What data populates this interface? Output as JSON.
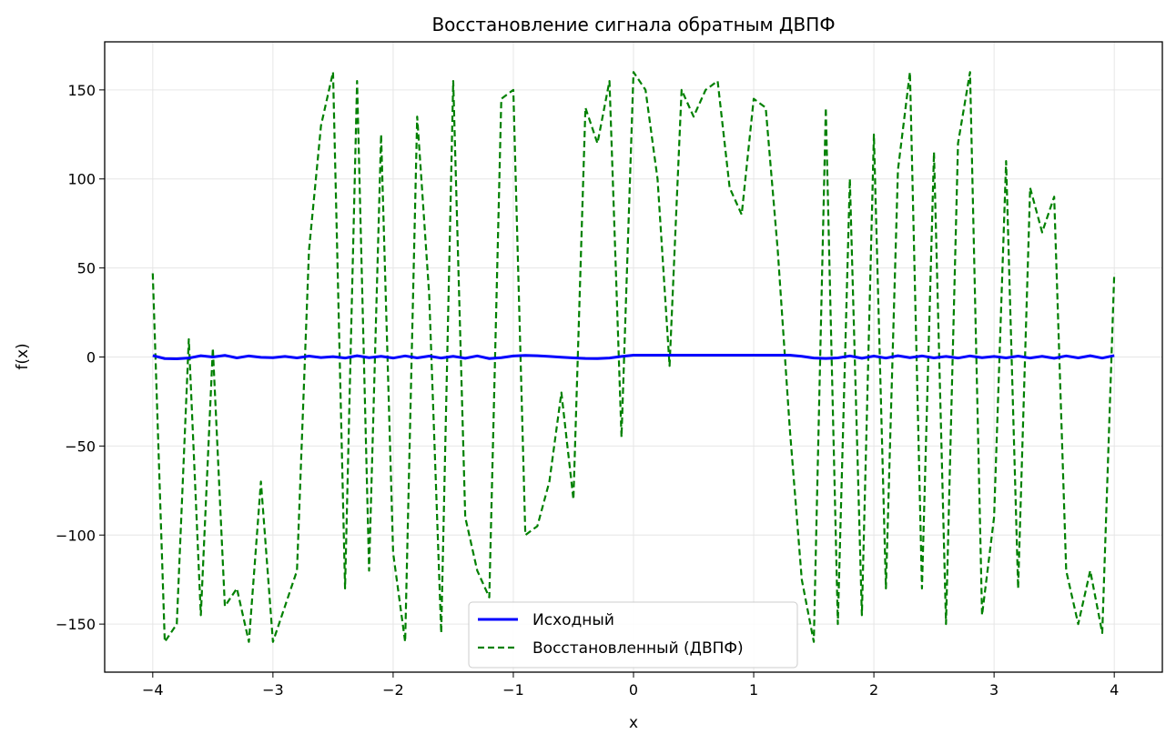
{
  "chart_data": {
    "type": "line",
    "title": "Восстановление сигнала обратным ДВПФ",
    "xlabel": "x",
    "ylabel": "f(x)",
    "xlim": [
      -4.4,
      4.4
    ],
    "ylim": [
      -177,
      177
    ],
    "xticks": [
      -4,
      -3,
      -2,
      -1,
      0,
      1,
      2,
      3,
      4
    ],
    "xtick_labels": [
      "−4",
      "−3",
      "−2",
      "−1",
      "0",
      "1",
      "2",
      "3",
      "4"
    ],
    "yticks": [
      -150,
      -100,
      -50,
      0,
      50,
      100,
      150
    ],
    "ytick_labels": [
      "−150",
      "−100",
      "−50",
      "0",
      "50",
      "100",
      "150"
    ],
    "grid": true,
    "legend_position": "lower center",
    "series": [
      {
        "name": "Исходный",
        "color": "#0000ff",
        "style": "solid",
        "x": [
          -4.0,
          -3.9,
          -3.8,
          -3.7,
          -3.6,
          -3.5,
          -3.4,
          -3.3,
          -3.2,
          -3.1,
          -3.0,
          -2.9,
          -2.8,
          -2.7,
          -2.6,
          -2.5,
          -2.4,
          -2.3,
          -2.2,
          -2.1,
          -2.0,
          -1.9,
          -1.8,
          -1.7,
          -1.6,
          -1.5,
          -1.4,
          -1.3,
          -1.2,
          -1.1,
          -1.0,
          -0.9,
          -0.8,
          -0.7,
          -0.6,
          -0.5,
          -0.4,
          -0.3,
          -0.2,
          -0.1,
          0.0,
          0.1,
          0.2,
          0.3,
          0.4,
          0.5,
          0.6,
          0.7,
          0.8,
          0.9,
          1.0,
          1.1,
          1.2,
          1.3,
          1.4,
          1.5,
          1.6,
          1.7,
          1.8,
          1.9,
          2.0,
          2.1,
          2.2,
          2.3,
          2.4,
          2.5,
          2.6,
          2.7,
          2.8,
          2.9,
          3.0,
          3.1,
          3.2,
          3.3,
          3.4,
          3.5,
          3.6,
          3.7,
          3.8,
          3.9,
          4.0
        ],
        "y": [
          0.8,
          -0.9,
          -1.0,
          -0.6,
          0.7,
          0.0,
          0.9,
          -0.5,
          0.6,
          -0.2,
          -0.4,
          0.3,
          -0.5,
          0.5,
          -0.3,
          0.2,
          -0.6,
          0.7,
          -0.4,
          0.4,
          -0.6,
          0.6,
          -0.5,
          0.5,
          -0.6,
          0.4,
          -0.7,
          0.6,
          -0.9,
          -0.4,
          0.6,
          0.9,
          0.7,
          0.3,
          -0.1,
          -0.5,
          -0.8,
          -0.9,
          -0.6,
          0.3,
          1.0,
          1.0,
          1.0,
          1.0,
          1.0,
          1.0,
          1.0,
          1.0,
          1.0,
          1.0,
          1.0,
          1.0,
          1.0,
          1.0,
          0.4,
          -0.6,
          -0.8,
          -0.5,
          0.6,
          -0.7,
          0.5,
          -0.6,
          0.7,
          -0.4,
          0.6,
          -0.5,
          0.3,
          -0.6,
          0.6,
          -0.4,
          0.3,
          -0.5,
          0.5,
          -0.6,
          0.4,
          -0.7,
          0.6,
          -0.5,
          0.7,
          -0.6,
          0.8
        ]
      },
      {
        "name": "Восстановленный (ДВПФ)",
        "color": "#008000",
        "style": "dashed",
        "x": [
          -4.0,
          -3.9,
          -3.8,
          -3.7,
          -3.6,
          -3.5,
          -3.4,
          -3.3,
          -3.2,
          -3.1,
          -3.0,
          -2.9,
          -2.8,
          -2.7,
          -2.6,
          -2.5,
          -2.4,
          -2.3,
          -2.2,
          -2.1,
          -2.0,
          -1.9,
          -1.8,
          -1.7,
          -1.6,
          -1.5,
          -1.4,
          -1.3,
          -1.2,
          -1.1,
          -1.0,
          -0.9,
          -0.8,
          -0.7,
          -0.6,
          -0.5,
          -0.4,
          -0.3,
          -0.2,
          -0.1,
          0.0,
          0.1,
          0.2,
          0.3,
          0.4,
          0.5,
          0.6,
          0.7,
          0.8,
          0.9,
          1.0,
          1.1,
          1.2,
          1.3,
          1.4,
          1.5,
          1.6,
          1.7,
          1.8,
          1.9,
          2.0,
          2.1,
          2.2,
          2.3,
          2.4,
          2.5,
          2.6,
          2.7,
          2.8,
          2.9,
          3.0,
          3.1,
          3.2,
          3.3,
          3.4,
          3.5,
          3.6,
          3.7,
          3.8,
          3.9,
          4.0
        ],
        "y": [
          47,
          -160,
          -150,
          10,
          -145,
          5,
          -140,
          -130,
          -160,
          -70,
          -160,
          -140,
          -120,
          60,
          130,
          160,
          -130,
          155,
          -120,
          125,
          -110,
          -160,
          135,
          35,
          -155,
          155,
          -90,
          -120,
          -135,
          145,
          150,
          -100,
          -95,
          -70,
          -20,
          -80,
          140,
          120,
          155,
          -45,
          160,
          150,
          100,
          -5,
          150,
          135,
          150,
          155,
          95,
          80,
          145,
          140,
          60,
          -40,
          -125,
          -160,
          140,
          -150,
          100,
          -145,
          125,
          -130,
          105,
          160,
          -130,
          115,
          -150,
          120,
          160,
          -145,
          -90,
          110,
          -130,
          95,
          70,
          90,
          -120,
          -150,
          -120,
          -155,
          47
        ]
      }
    ]
  }
}
